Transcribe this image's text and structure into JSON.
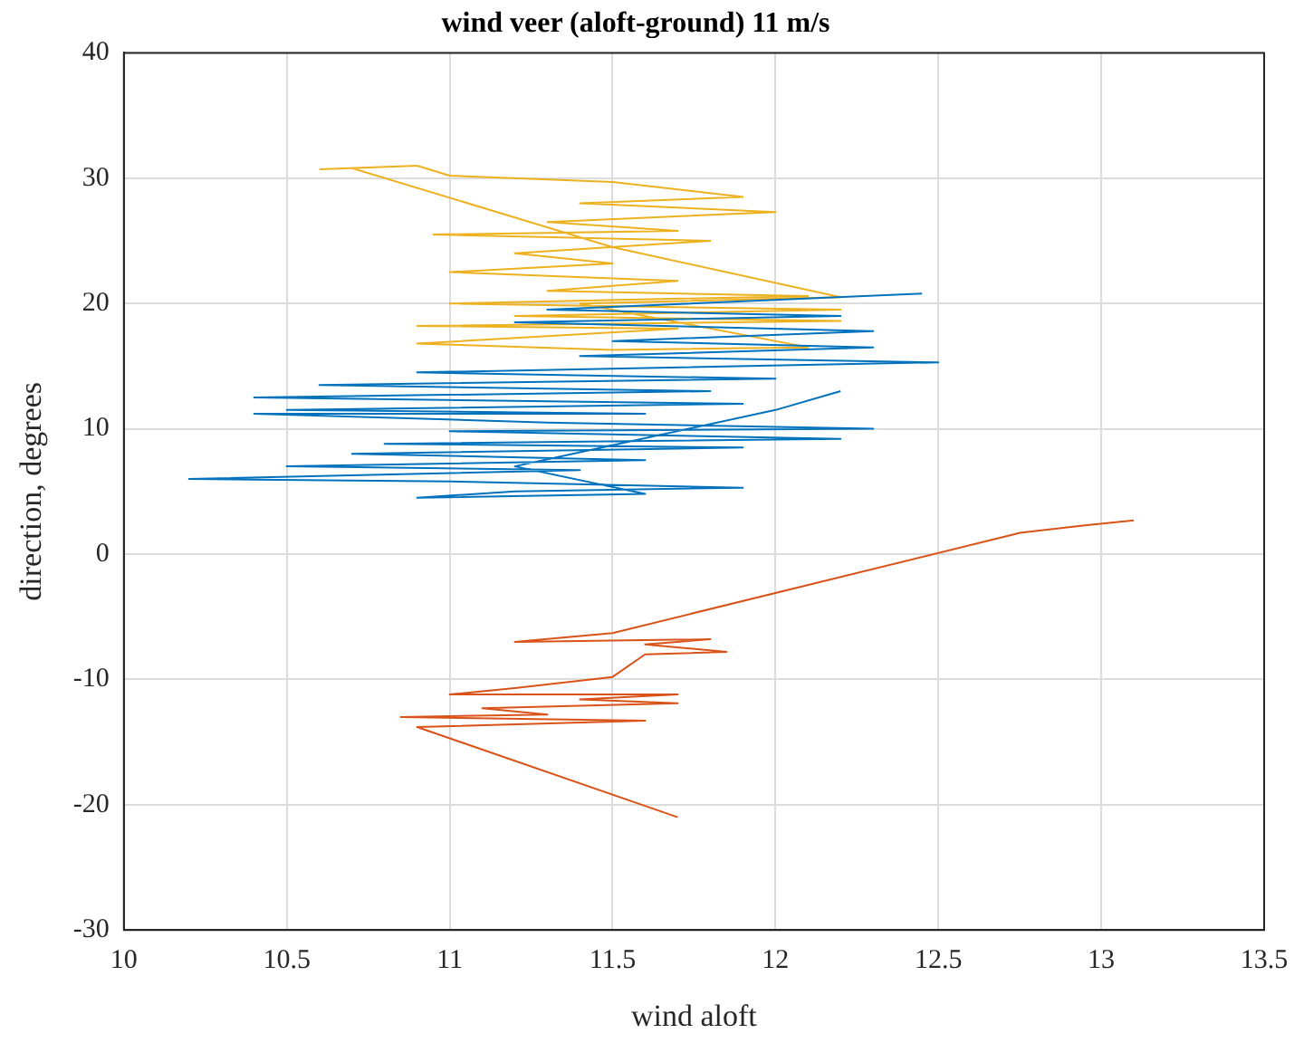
{
  "chart_data": {
    "type": "line",
    "title": "wind veer (aloft-ground) 11 m/s",
    "xlabel": "wind aloft",
    "ylabel": "direction, degrees",
    "xlim": [
      10,
      13.5
    ],
    "xticks": [
      10,
      10.5,
      11,
      11.5,
      12,
      12.5,
      13,
      13.5
    ],
    "ylim": [
      -30,
      40
    ],
    "yticks": [
      -30,
      -20,
      -10,
      0,
      10,
      20,
      30,
      40
    ],
    "grid": true,
    "legend": false,
    "marker": "none",
    "line_style": "solid",
    "series": [
      {
        "color": "#0072bd",
        "x": [
          12.45,
          11.3,
          12.2,
          11.2,
          12.3,
          11.5,
          12.3,
          11.4,
          12.5,
          10.9,
          12.0,
          10.6,
          11.8,
          10.4,
          11.9,
          10.5,
          11.6,
          10.4,
          11.3,
          12.3,
          11.0,
          12.2,
          10.8,
          11.9,
          10.7,
          11.6,
          10.5,
          11.4,
          10.2,
          11.0,
          11.9,
          11.2,
          10.9,
          11.6,
          11.2,
          12.0,
          12.2
        ],
        "values": [
          20.8,
          19.5,
          19.0,
          18.5,
          17.8,
          17.0,
          16.5,
          15.8,
          15.3,
          14.5,
          14.0,
          13.5,
          13.0,
          12.5,
          12.0,
          11.5,
          11.2,
          11.2,
          10.5,
          10.0,
          9.8,
          9.2,
          8.8,
          8.5,
          8.0,
          7.5,
          7.0,
          6.7,
          6.0,
          5.8,
          5.3,
          5.0,
          4.5,
          4.8,
          7.0,
          11.5,
          13.0
        ]
      },
      {
        "color": "#d95319",
        "x": [
          13.1,
          12.95,
          12.75,
          12.72,
          11.5,
          11.2,
          11.8,
          11.6,
          11.85,
          11.6,
          11.5,
          11.2,
          11.0,
          11.7,
          11.4,
          11.7,
          11.1,
          11.3,
          10.85,
          11.6,
          10.9,
          11.7
        ],
        "values": [
          2.7,
          2.3,
          1.7,
          1.5,
          -6.3,
          -7.0,
          -6.8,
          -7.2,
          -7.8,
          -8.0,
          -9.8,
          -10.7,
          -11.2,
          -11.2,
          -11.6,
          -11.9,
          -12.3,
          -12.8,
          -13.0,
          -13.3,
          -13.8,
          -21.0
        ]
      },
      {
        "color": "#edb120",
        "x": [
          10.6,
          10.9,
          11.0,
          11.5,
          11.9,
          11.4,
          12.0,
          11.3,
          11.7,
          10.95,
          11.8,
          11.2,
          11.5,
          11.0,
          11.7,
          11.3,
          12.1,
          11.0,
          12.2,
          11.2,
          12.2,
          10.9,
          11.7,
          10.9,
          11.5,
          12.1,
          11.4,
          12.2,
          11.5,
          10.7
        ],
        "values": [
          30.7,
          31.0,
          30.2,
          29.7,
          28.5,
          28.0,
          27.3,
          26.5,
          25.8,
          25.5,
          25.0,
          24.0,
          23.2,
          22.5,
          21.8,
          21.0,
          20.6,
          20.0,
          19.5,
          19.0,
          18.6,
          18.2,
          18.0,
          16.8,
          16.3,
          16.5,
          20.0,
          20.5,
          24.5,
          30.8
        ]
      }
    ]
  }
}
